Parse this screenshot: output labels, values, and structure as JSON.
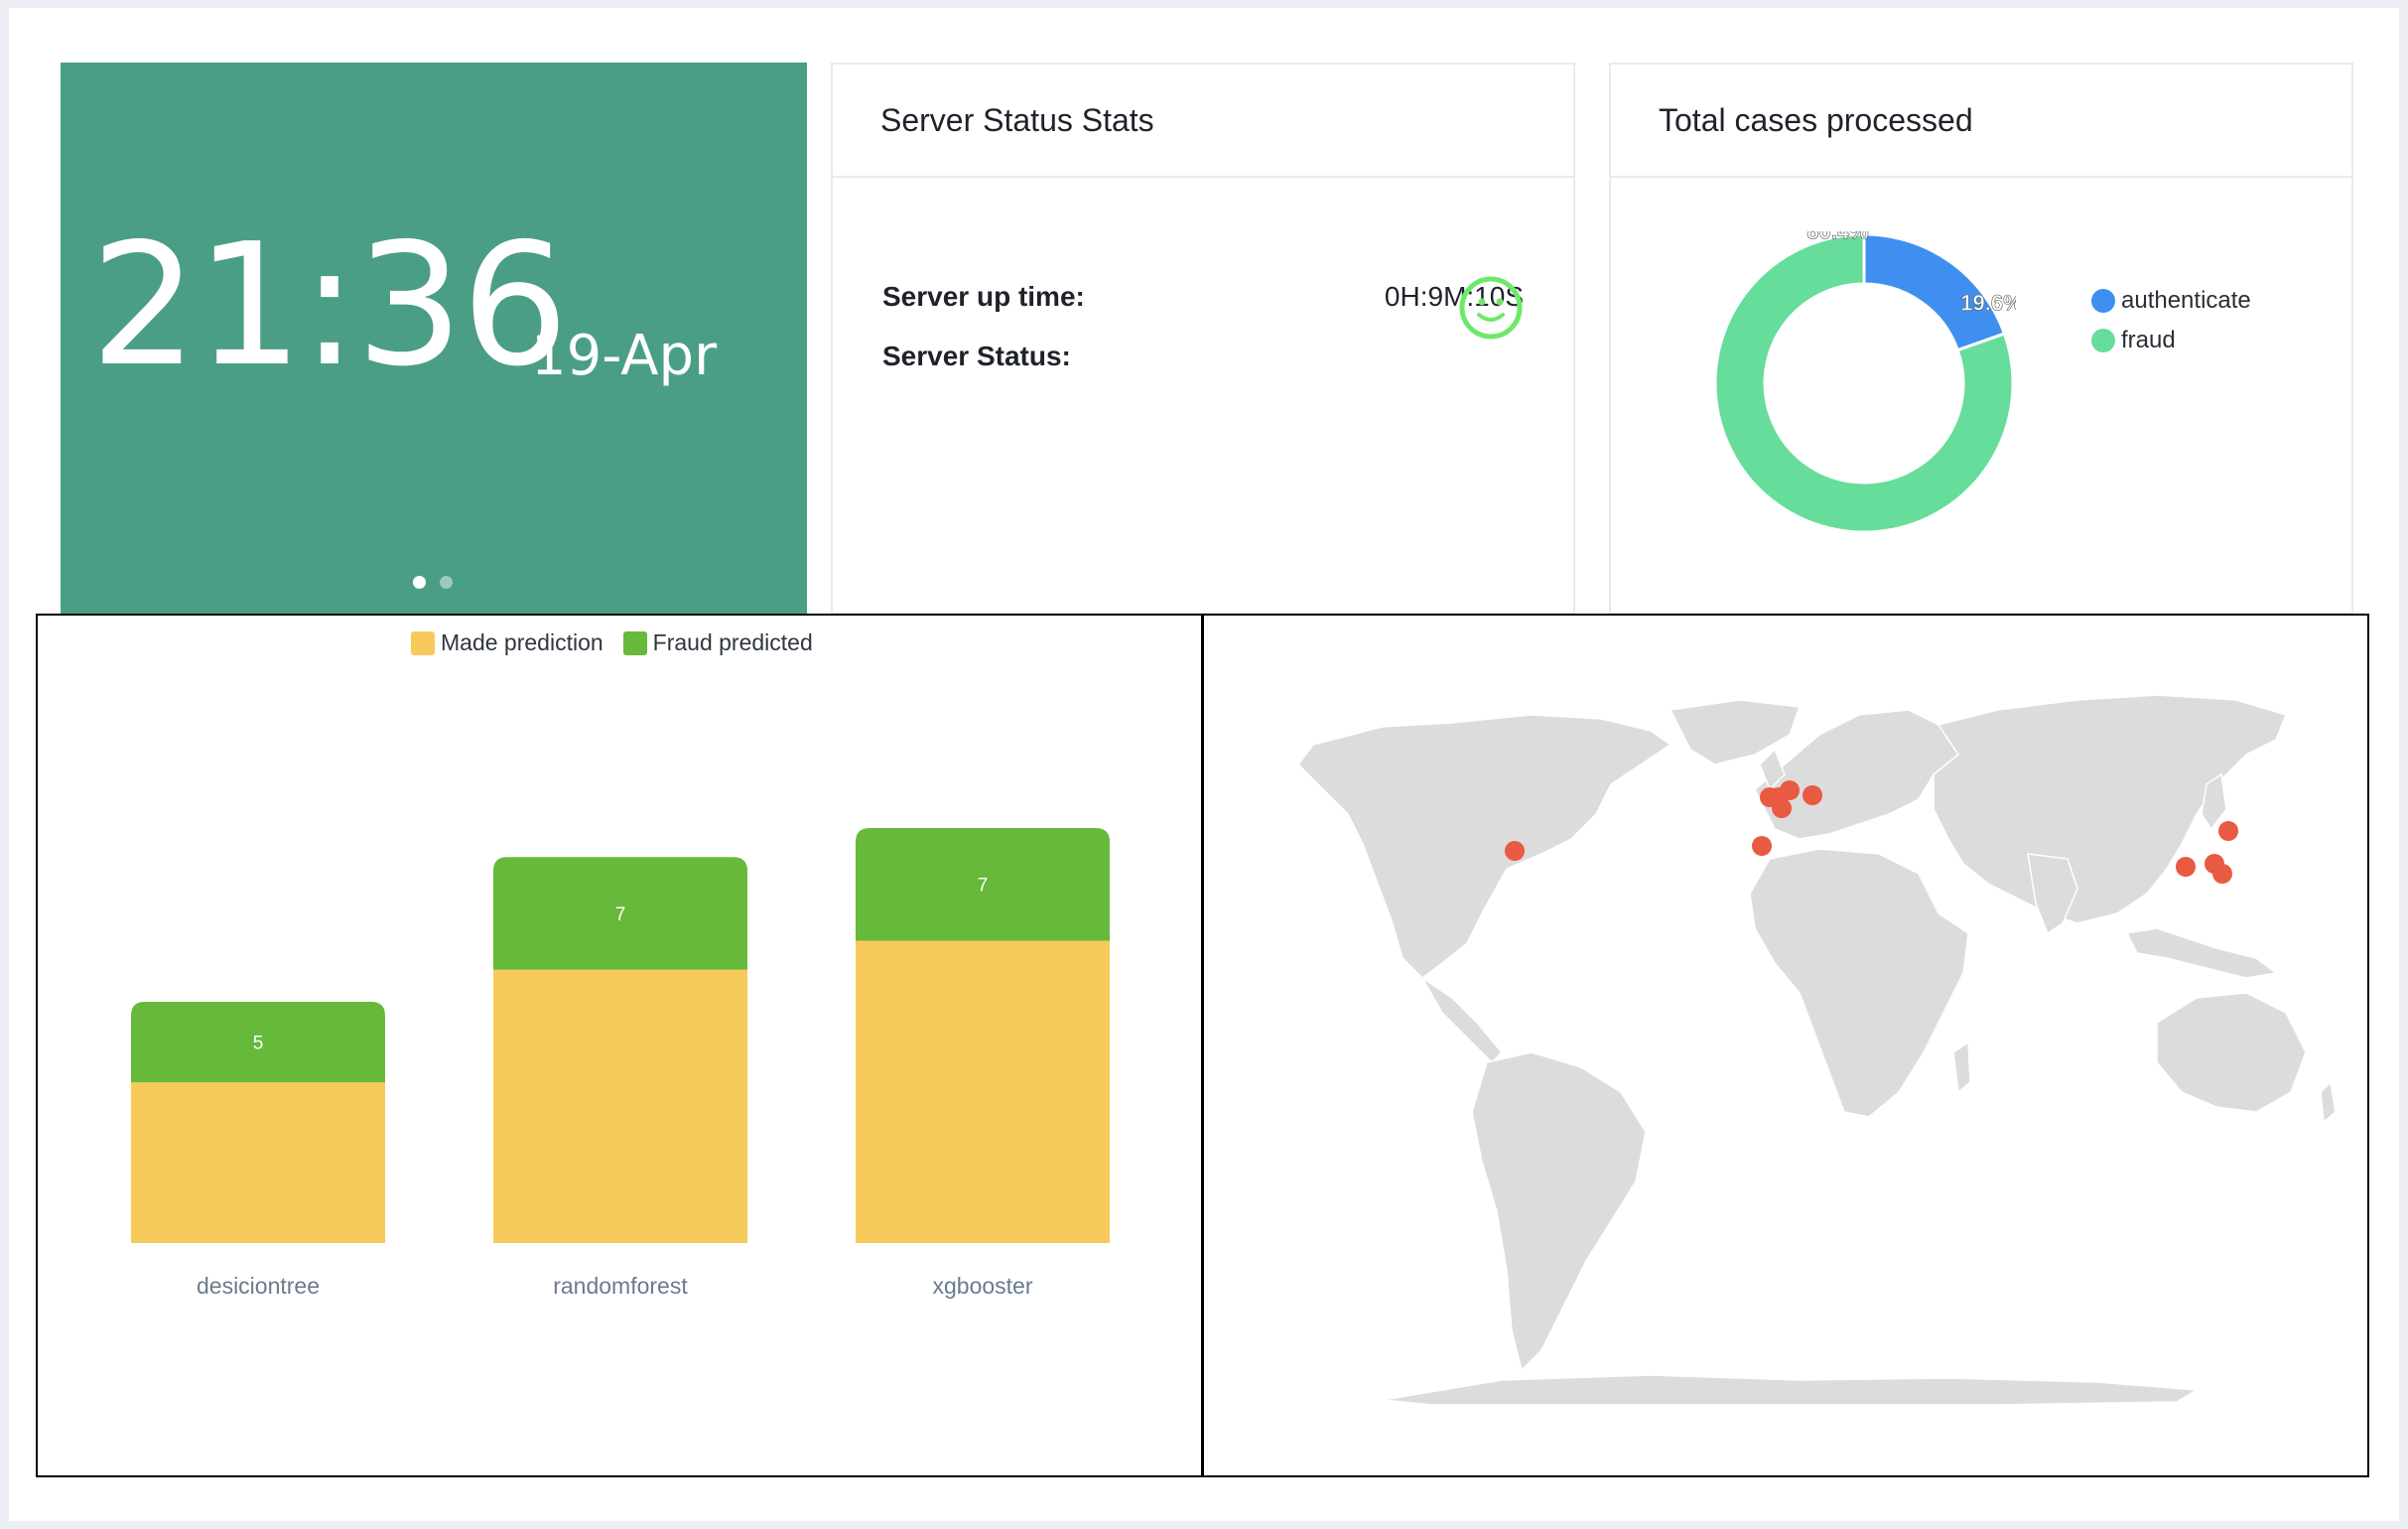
{
  "clock": {
    "time": "21:36",
    "date": "19-Apr"
  },
  "server_card": {
    "title": "Server Status Stats",
    "uptime_label": "Server up time:",
    "uptime_value": "0H:9M:10S",
    "status_label": "Server Status:",
    "status_icon": "smiley-icon",
    "status_color": "#6ee86b"
  },
  "cases_card": {
    "title": "Total cases processed",
    "legend": [
      {
        "label": "authenticate",
        "color": "#3f8ff1"
      },
      {
        "label": "fraud",
        "color": "#66dd9a"
      }
    ]
  },
  "chart_data": [
    {
      "type": "pie",
      "title": "Total cases processed",
      "categories": [
        "authenticate",
        "fraud"
      ],
      "values": [
        19.6,
        80.4
      ],
      "value_labels": [
        "19.6%",
        "80.4%"
      ],
      "colors": [
        "#3f8ff1",
        "#66dd9a"
      ],
      "legend_position": "right"
    },
    {
      "type": "bar",
      "stacked": true,
      "categories": [
        "desiciontree",
        "randomforest",
        "xgbooster"
      ],
      "series": [
        {
          "name": "Made prediction",
          "color": "#f7ca5c",
          "values": [
            10,
            17,
            18.8
          ]
        },
        {
          "name": "Fraud predicted",
          "color": "#67b93b",
          "values": [
            5,
            7,
            7
          ]
        }
      ],
      "data_labels": [
        "5",
        "7",
        "7"
      ],
      "ylim": [
        0,
        30
      ],
      "legend_position": "top"
    }
  ],
  "map": {
    "land_color": "#dcdcdc",
    "marker_color": "#e85a41"
  }
}
